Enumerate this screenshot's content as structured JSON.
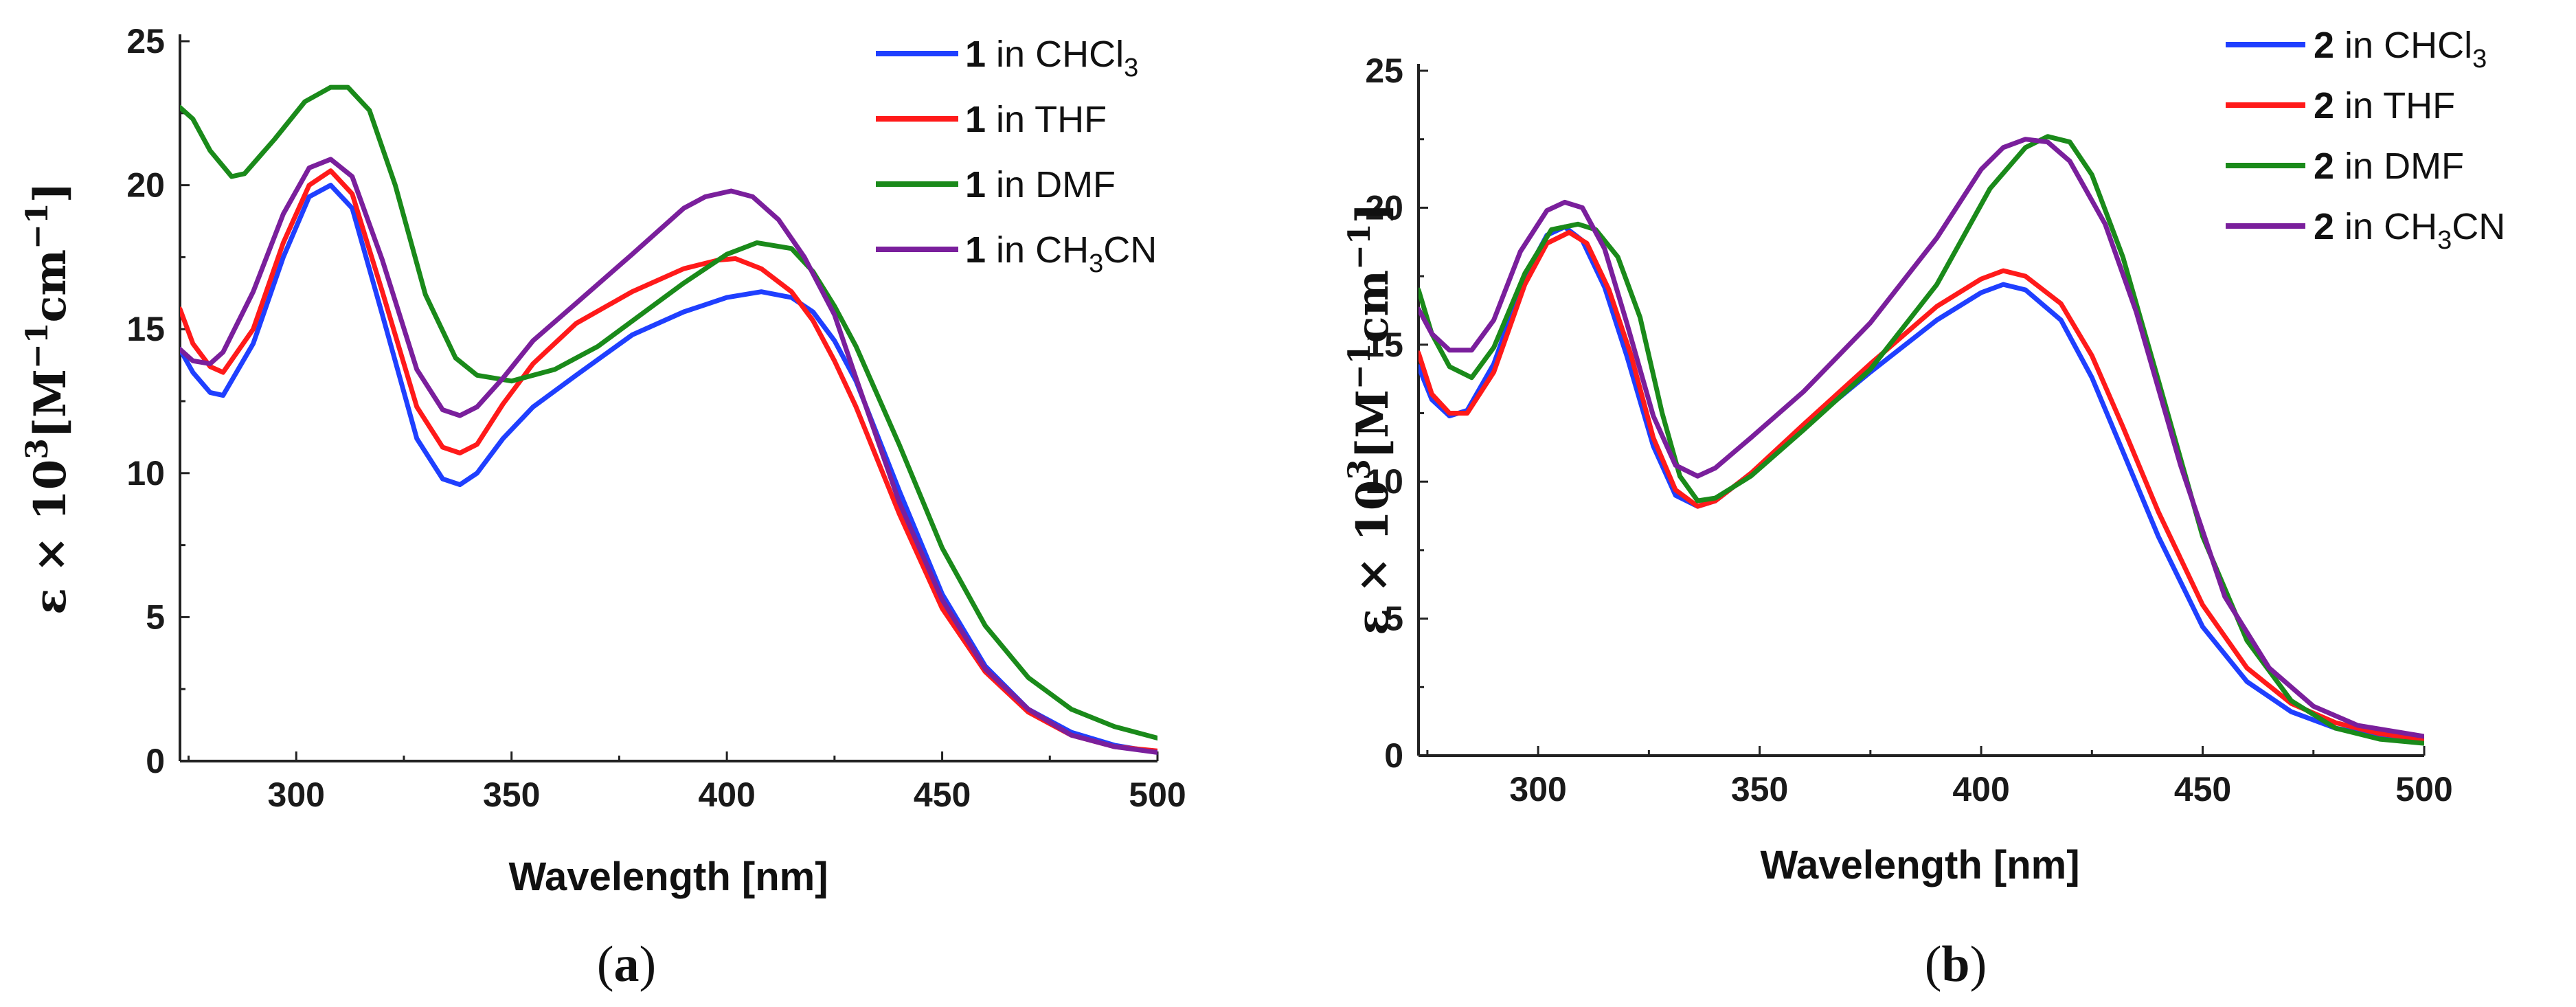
{
  "figure": {
    "panels": [
      {
        "label_open": "(",
        "label_letter": "a",
        "label_close": ")"
      },
      {
        "label_open": "(",
        "label_letter": "b",
        "label_close": ")"
      }
    ]
  },
  "chart_data": [
    {
      "type": "line",
      "panel": "a",
      "xlabel": "Wavelength [nm]",
      "ylabel": "ε × 10³[M⁻¹cm⁻¹]",
      "ylabel_parts": {
        "eps": "ε",
        "times": " × 10",
        "sup3": "3",
        "open": "[M",
        "supm1a": "−1",
        "cm": "cm",
        "supm1b": "−1",
        "close": "]"
      },
      "xlim": [
        273,
        500
      ],
      "ylim": [
        0,
        25
      ],
      "xticks": [
        300,
        350,
        400,
        450,
        500
      ],
      "yticks": [
        0,
        5,
        10,
        15,
        20,
        25
      ],
      "legend_position": "top-right",
      "series": [
        {
          "name": "1 in CHCl3",
          "num": "1",
          "text": " in CHCl",
          "sub": "3",
          "suffix": "",
          "color": "#1f3fff",
          "x": [
            273,
            276,
            280,
            283,
            290,
            297,
            303,
            308,
            313,
            320,
            328,
            334,
            338,
            342,
            348,
            355,
            365,
            378,
            390,
            400,
            408,
            415,
            420,
            425,
            430,
            440,
            450,
            460,
            470,
            480,
            490,
            500
          ],
          "y": [
            14.3,
            13.5,
            12.8,
            12.7,
            14.5,
            17.5,
            19.6,
            20.0,
            19.2,
            15.5,
            11.2,
            9.8,
            9.6,
            10.0,
            11.2,
            12.3,
            13.4,
            14.8,
            15.6,
            16.1,
            16.3,
            16.1,
            15.6,
            14.6,
            13.2,
            9.4,
            5.8,
            3.3,
            1.8,
            1.0,
            0.55,
            0.3
          ]
        },
        {
          "name": "1 in THF",
          "num": "1",
          "text": " in THF",
          "sub": "",
          "suffix": "",
          "color": "#ff1a1a",
          "x": [
            273,
            276,
            280,
            283,
            290,
            297,
            303,
            308,
            313,
            320,
            328,
            334,
            338,
            342,
            348,
            355,
            365,
            378,
            390,
            398,
            402,
            408,
            415,
            420,
            425,
            430,
            440,
            450,
            460,
            470,
            480,
            490,
            500
          ],
          "y": [
            15.7,
            14.5,
            13.7,
            13.5,
            15.0,
            18.0,
            20.0,
            20.5,
            19.7,
            16.3,
            12.3,
            10.9,
            10.7,
            11.0,
            12.4,
            13.8,
            15.2,
            16.3,
            17.1,
            17.4,
            17.45,
            17.1,
            16.3,
            15.3,
            13.9,
            12.3,
            8.6,
            5.3,
            3.1,
            1.7,
            0.9,
            0.5,
            0.35
          ]
        },
        {
          "name": "1 in DMF",
          "num": "1",
          "text": " in DMF",
          "sub": "",
          "suffix": "",
          "color": "#1a8a1a",
          "x": [
            273,
            276,
            280,
            285,
            288,
            295,
            302,
            308,
            312,
            317,
            323,
            330,
            337,
            342,
            350,
            360,
            370,
            380,
            390,
            400,
            407,
            415,
            420,
            425,
            430,
            440,
            450,
            460,
            470,
            480,
            490,
            500
          ],
          "y": [
            22.7,
            22.3,
            21.2,
            20.3,
            20.4,
            21.6,
            22.9,
            23.4,
            23.4,
            22.6,
            20.0,
            16.2,
            14.0,
            13.4,
            13.2,
            13.6,
            14.4,
            15.5,
            16.6,
            17.6,
            18.0,
            17.8,
            17.0,
            15.8,
            14.4,
            11.0,
            7.4,
            4.7,
            2.9,
            1.8,
            1.2,
            0.8
          ]
        },
        {
          "name": "1 in CH3CN",
          "num": "1",
          "text": " in CH",
          "sub": "3",
          "suffix": "CN",
          "color": "#7a1f9c",
          "x": [
            273,
            276,
            280,
            283,
            290,
            297,
            303,
            308,
            313,
            320,
            328,
            334,
            338,
            342,
            348,
            355,
            365,
            378,
            390,
            395,
            401,
            406,
            412,
            418,
            425,
            430,
            440,
            450,
            460,
            470,
            480,
            490,
            500
          ],
          "y": [
            14.3,
            13.9,
            13.8,
            14.2,
            16.3,
            19.0,
            20.6,
            20.9,
            20.3,
            17.4,
            13.6,
            12.2,
            12.0,
            12.3,
            13.3,
            14.6,
            15.9,
            17.6,
            19.2,
            19.6,
            19.8,
            19.6,
            18.8,
            17.5,
            15.5,
            13.3,
            9.0,
            5.6,
            3.2,
            1.8,
            0.9,
            0.5,
            0.3
          ]
        }
      ]
    },
    {
      "type": "line",
      "panel": "b",
      "xlabel": "Wavelength [nm]",
      "ylabel": "ε × 10³[M⁻¹cm⁻¹]",
      "ylabel_parts": {
        "eps": "ε",
        "times": " × 10",
        "sup3": "3",
        "open": "[M",
        "supm1a": "−1",
        "cm": "cm",
        "supm1b": "−1",
        "close": "]"
      },
      "xlim": [
        273,
        500
      ],
      "ylim": [
        0,
        25
      ],
      "xticks": [
        300,
        350,
        400,
        450,
        500
      ],
      "yticks": [
        0,
        5,
        10,
        15,
        20,
        25
      ],
      "legend_position": "top-right",
      "series": [
        {
          "name": "2 in CHCl3",
          "num": "2",
          "text": " in CHCl",
          "sub": "3",
          "suffix": "",
          "color": "#1f3fff",
          "x": [
            273,
            276,
            280,
            284,
            290,
            297,
            302,
            306,
            310,
            315,
            320,
            326,
            331,
            336,
            340,
            348,
            360,
            375,
            390,
            400,
            405,
            410,
            418,
            425,
            432,
            440,
            450,
            460,
            470,
            480,
            490,
            500
          ],
          "y": [
            14.2,
            13.0,
            12.4,
            12.6,
            14.3,
            17.5,
            19.0,
            19.3,
            18.8,
            17.1,
            14.6,
            11.3,
            9.5,
            9.1,
            9.3,
            10.3,
            12.0,
            14.0,
            15.9,
            16.9,
            17.2,
            17.0,
            15.9,
            13.8,
            11.1,
            8.0,
            4.7,
            2.7,
            1.6,
            1.0,
            0.7,
            0.55
          ]
        },
        {
          "name": "2 in THF",
          "num": "2",
          "text": " in THF",
          "sub": "",
          "suffix": "",
          "color": "#ff1a1a",
          "x": [
            273,
            276,
            280,
            284,
            290,
            297,
            302,
            307,
            311,
            316,
            321,
            326,
            331,
            336,
            340,
            348,
            360,
            375,
            390,
            400,
            405,
            410,
            418,
            425,
            432,
            440,
            450,
            460,
            470,
            480,
            490,
            500
          ],
          "y": [
            14.7,
            13.2,
            12.5,
            12.5,
            14.0,
            17.2,
            18.7,
            19.1,
            18.7,
            17.0,
            14.6,
            11.6,
            9.7,
            9.1,
            9.3,
            10.3,
            12.1,
            14.3,
            16.4,
            17.4,
            17.7,
            17.5,
            16.5,
            14.6,
            12.0,
            8.9,
            5.5,
            3.2,
            1.9,
            1.2,
            0.8,
            0.6
          ]
        },
        {
          "name": "2 in DMF",
          "num": "2",
          "text": " in DMF",
          "sub": "",
          "suffix": "",
          "color": "#1a8a1a",
          "x": [
            273,
            276,
            280,
            285,
            290,
            297,
            303,
            309,
            313,
            318,
            323,
            328,
            332,
            336,
            340,
            348,
            360,
            375,
            390,
            402,
            410,
            415,
            420,
            425,
            432,
            440,
            450,
            460,
            470,
            480,
            490,
            500
          ],
          "y": [
            17.0,
            15.4,
            14.2,
            13.8,
            14.9,
            17.6,
            19.2,
            19.4,
            19.2,
            18.2,
            16.0,
            12.5,
            10.2,
            9.3,
            9.4,
            10.2,
            11.9,
            14.1,
            17.2,
            20.7,
            22.2,
            22.6,
            22.4,
            21.2,
            18.2,
            13.7,
            8.0,
            4.2,
            2.0,
            1.0,
            0.6,
            0.45
          ]
        },
        {
          "name": "2 in CH3CN",
          "num": "2",
          "text": " in CH",
          "sub": "3",
          "suffix": "CN",
          "color": "#7a1f9c",
          "x": [
            273,
            276,
            280,
            285,
            290,
            296,
            302,
            306,
            310,
            315,
            320,
            326,
            331,
            336,
            340,
            348,
            360,
            375,
            390,
            400,
            405,
            410,
            415,
            420,
            428,
            435,
            445,
            455,
            465,
            475,
            485,
            500
          ],
          "y": [
            16.3,
            15.4,
            14.8,
            14.8,
            15.9,
            18.4,
            19.9,
            20.2,
            20.0,
            18.5,
            15.8,
            12.4,
            10.6,
            10.2,
            10.5,
            11.6,
            13.3,
            15.8,
            18.9,
            21.4,
            22.2,
            22.5,
            22.4,
            21.7,
            19.4,
            16.2,
            10.6,
            5.8,
            3.2,
            1.8,
            1.1,
            0.7
          ]
        }
      ]
    }
  ]
}
